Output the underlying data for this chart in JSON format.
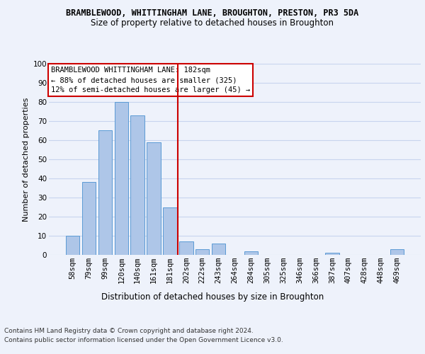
{
  "title": "BRAMBLEWOOD, WHITTINGHAM LANE, BROUGHTON, PRESTON, PR3 5DA",
  "subtitle": "Size of property relative to detached houses in Broughton",
  "xlabel": "Distribution of detached houses by size in Broughton",
  "ylabel": "Number of detached properties",
  "bar_color": "#aec6e8",
  "bar_edge_color": "#5b9bd5",
  "categories": [
    "58sqm",
    "79sqm",
    "99sqm",
    "120sqm",
    "140sqm",
    "161sqm",
    "181sqm",
    "202sqm",
    "222sqm",
    "243sqm",
    "264sqm",
    "284sqm",
    "305sqm",
    "325sqm",
    "346sqm",
    "366sqm",
    "387sqm",
    "407sqm",
    "428sqm",
    "448sqm",
    "469sqm"
  ],
  "values": [
    10,
    38,
    65,
    80,
    73,
    59,
    25,
    7,
    3,
    6,
    0,
    2,
    0,
    0,
    0,
    0,
    1,
    0,
    0,
    0,
    3
  ],
  "ylim": [
    0,
    100
  ],
  "yticks": [
    0,
    10,
    20,
    30,
    40,
    50,
    60,
    70,
    80,
    90,
    100
  ],
  "marker_index": 6,
  "annotation_line1": "BRAMBLEWOOD WHITTINGHAM LANE: 182sqm",
  "annotation_line2": "← 88% of detached houses are smaller (325)",
  "annotation_line3": "12% of semi-detached houses are larger (45) →",
  "footer1": "Contains HM Land Registry data © Crown copyright and database right 2024.",
  "footer2": "Contains public sector information licensed under the Open Government Licence v3.0.",
  "background_color": "#eef2fb",
  "grid_color": "#c8d4ee",
  "annotation_box_color": "#ffffff",
  "annotation_box_edge": "#cc0000",
  "vline_color": "#cc0000",
  "title_fontsize": 8.5,
  "subtitle_fontsize": 8.5,
  "ylabel_fontsize": 8,
  "xlabel_fontsize": 8.5,
  "tick_fontsize": 7.5,
  "footer_fontsize": 6.5
}
